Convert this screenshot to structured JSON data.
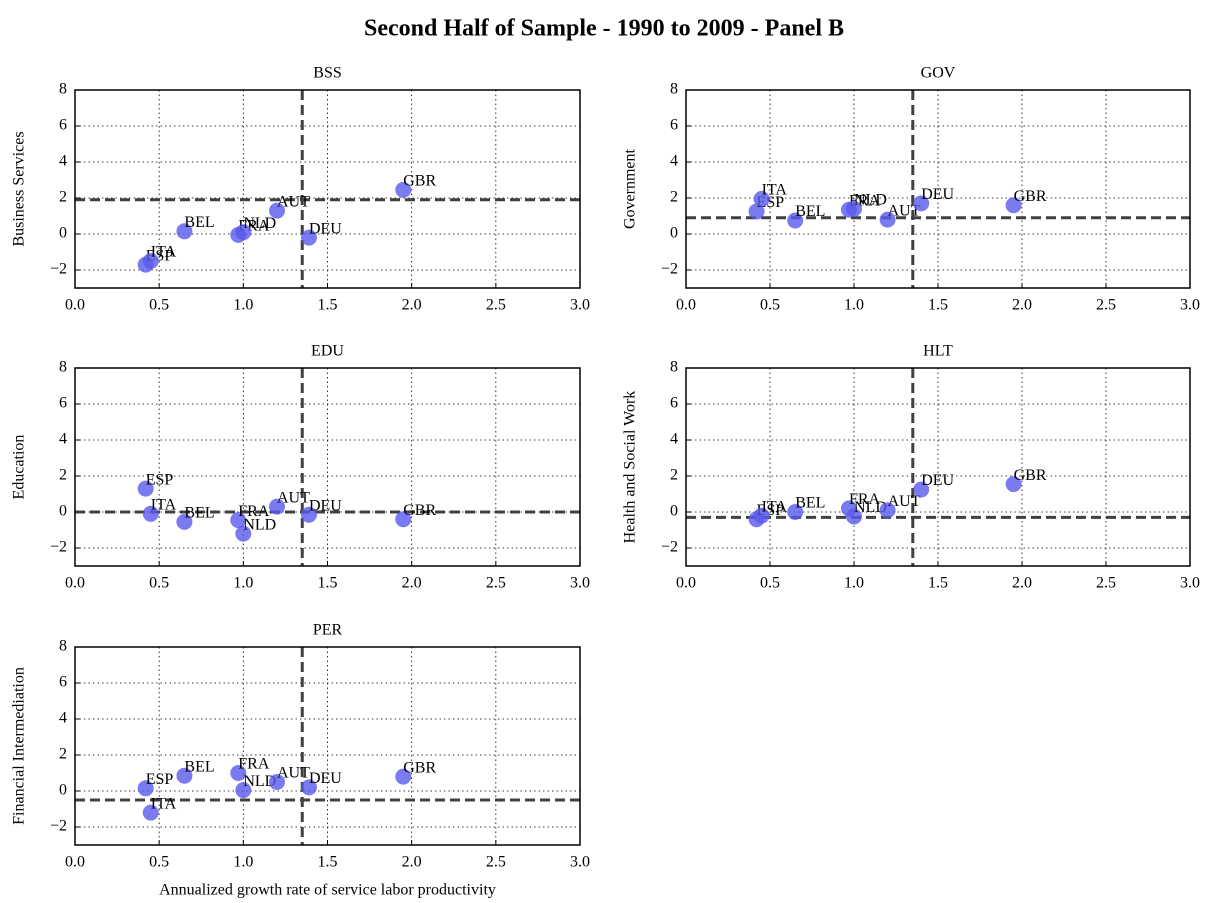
{
  "title": "Second Half of Sample - 1990 to 2009 - Panel B",
  "chart_data": [
    {
      "type": "scatter",
      "title": "BSS",
      "ylabel": "Business Services",
      "color": "#5a5aee",
      "labels": [
        "ESP",
        "ITA",
        "BEL",
        "FRA",
        "NLD",
        "AUT",
        "DEU",
        "GBR"
      ],
      "x": [
        0.42,
        0.45,
        0.65,
        0.97,
        1.0,
        1.2,
        1.39,
        1.95
      ],
      "values": [
        -1.7,
        -1.5,
        0.15,
        -0.05,
        0.1,
        1.3,
        -0.2,
        2.45
      ],
      "vline": 1.35,
      "hline": 1.9,
      "xlim": [
        0,
        3
      ],
      "ylim": [
        -3,
        8
      ],
      "xticks": [
        {
          "value": 0,
          "label": "0.0"
        },
        {
          "value": 0.5,
          "label": "0.5"
        },
        {
          "value": 1,
          "label": "1.0"
        },
        {
          "value": 1.5,
          "label": "1.5"
        },
        {
          "value": 2,
          "label": "2.0"
        },
        {
          "value": 2.5,
          "label": "2.5"
        },
        {
          "value": 3,
          "label": "3.0"
        }
      ],
      "yticks": [
        {
          "value": -2,
          "label": "−2"
        },
        0,
        2,
        4,
        6,
        8
      ],
      "grid": true
    },
    {
      "type": "scatter",
      "title": "GOV",
      "ylabel": "Government",
      "color": "#5a5aee",
      "labels": [
        "ESP",
        "ITA",
        "BEL",
        "FRA",
        "NLD",
        "AUT",
        "DEU",
        "GBR"
      ],
      "x": [
        0.42,
        0.45,
        0.65,
        0.97,
        1.0,
        1.2,
        1.4,
        1.95
      ],
      "values": [
        1.25,
        1.95,
        0.75,
        1.35,
        1.4,
        0.8,
        1.7,
        1.6
      ],
      "vline": 1.35,
      "hline": 0.9,
      "xlim": [
        0,
        3
      ],
      "ylim": [
        -3,
        8
      ],
      "xticks": [
        {
          "value": 0,
          "label": "0.0"
        },
        {
          "value": 0.5,
          "label": "0.5"
        },
        {
          "value": 1,
          "label": "1.0"
        },
        {
          "value": 1.5,
          "label": "1.5"
        },
        {
          "value": 2,
          "label": "2.0"
        },
        {
          "value": 2.5,
          "label": "2.5"
        },
        {
          "value": 3,
          "label": "3.0"
        }
      ],
      "yticks": [
        {
          "value": -2,
          "label": "−2"
        },
        0,
        2,
        4,
        6,
        8
      ],
      "grid": true
    },
    {
      "type": "scatter",
      "title": "EDU",
      "ylabel": "Education",
      "color": "#5a5aee",
      "labels": [
        "ESP",
        "ITA",
        "BEL",
        "FRA",
        "NLD",
        "AUT",
        "DEU",
        "GBR"
      ],
      "x": [
        0.42,
        0.45,
        0.65,
        0.97,
        1.0,
        1.2,
        1.39,
        1.95
      ],
      "values": [
        1.3,
        -0.1,
        -0.55,
        -0.45,
        -1.2,
        0.3,
        -0.15,
        -0.4
      ],
      "vline": 1.35,
      "hline": 0,
      "xlim": [
        0,
        3
      ],
      "ylim": [
        -3,
        8
      ],
      "xticks": [
        {
          "value": 0,
          "label": "0.0"
        },
        {
          "value": 0.5,
          "label": "0.5"
        },
        {
          "value": 1,
          "label": "1.0"
        },
        {
          "value": 1.5,
          "label": "1.5"
        },
        {
          "value": 2,
          "label": "2.0"
        },
        {
          "value": 2.5,
          "label": "2.5"
        },
        {
          "value": 3,
          "label": "3.0"
        }
      ],
      "yticks": [
        {
          "value": -2,
          "label": "−2"
        },
        0,
        2,
        4,
        6,
        8
      ],
      "grid": true
    },
    {
      "type": "scatter",
      "title": "HLT",
      "ylabel": "Health and Social Work",
      "color": "#5a5aee",
      "labels": [
        "ESP",
        "ITA",
        "BEL",
        "FRA",
        "NLD",
        "AUT",
        "DEU",
        "GBR"
      ],
      "x": [
        0.42,
        0.45,
        0.65,
        0.97,
        1.0,
        1.2,
        1.4,
        1.95
      ],
      "values": [
        -0.4,
        -0.2,
        0.0,
        0.2,
        -0.25,
        0.1,
        1.25,
        1.55
      ],
      "vline": 1.35,
      "hline": -0.3,
      "xlim": [
        0,
        3
      ],
      "ylim": [
        -3,
        8
      ],
      "xticks": [
        {
          "value": 0,
          "label": "0.0"
        },
        {
          "value": 0.5,
          "label": "0.5"
        },
        {
          "value": 1,
          "label": "1.0"
        },
        {
          "value": 1.5,
          "label": "1.5"
        },
        {
          "value": 2,
          "label": "2.0"
        },
        {
          "value": 2.5,
          "label": "2.5"
        },
        {
          "value": 3,
          "label": "3.0"
        }
      ],
      "yticks": [
        {
          "value": -2,
          "label": "−2"
        },
        0,
        2,
        4,
        6,
        8
      ],
      "grid": true
    },
    {
      "type": "scatter",
      "title": "PER",
      "ylabel": "Financial Intermediation",
      "xlabel": "Annualized growth rate of service labor productivity",
      "color": "#5a5aee",
      "labels": [
        "ESP",
        "ITA",
        "BEL",
        "FRA",
        "NLD",
        "AUT",
        "DEU",
        "GBR"
      ],
      "x": [
        0.42,
        0.45,
        0.65,
        0.97,
        1.0,
        1.2,
        1.39,
        1.95
      ],
      "values": [
        0.15,
        -1.2,
        0.85,
        1.0,
        0.05,
        0.5,
        0.2,
        0.8
      ],
      "vline": 1.35,
      "hline": -0.5,
      "xlim": [
        0,
        3
      ],
      "ylim": [
        -3,
        8
      ],
      "xticks": [
        {
          "value": 0,
          "label": "0.0"
        },
        {
          "value": 0.5,
          "label": "0.5"
        },
        {
          "value": 1,
          "label": "1.0"
        },
        {
          "value": 1.5,
          "label": "1.5"
        },
        {
          "value": 2,
          "label": "2.0"
        },
        {
          "value": 2.5,
          "label": "2.5"
        },
        {
          "value": 3,
          "label": "3.0"
        }
      ],
      "yticks": [
        {
          "value": -2,
          "label": "−2"
        },
        0,
        2,
        4,
        6,
        8
      ],
      "grid": true
    }
  ]
}
